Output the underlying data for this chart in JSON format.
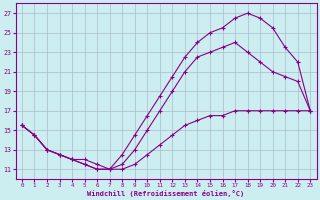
{
  "xlabel": "Windchill (Refroidissement éolien,°C)",
  "bg_color": "#cceef0",
  "grid_color": "#aabbcc",
  "line_color": "#880088",
  "xlim": [
    -0.5,
    23.5
  ],
  "ylim": [
    10,
    28
  ],
  "xticks": [
    0,
    1,
    2,
    3,
    4,
    5,
    6,
    7,
    8,
    9,
    10,
    11,
    12,
    13,
    14,
    15,
    16,
    17,
    18,
    19,
    20,
    21,
    22,
    23
  ],
  "yticks": [
    11,
    13,
    15,
    17,
    19,
    21,
    23,
    25,
    27
  ],
  "curve1_x": [
    0,
    1,
    2,
    3,
    4,
    5,
    6,
    7,
    8,
    9,
    10,
    11,
    12,
    13,
    14,
    15,
    16,
    17,
    18,
    19,
    20,
    21,
    22,
    23
  ],
  "curve1_y": [
    15.5,
    14.5,
    13.0,
    12.5,
    12.0,
    12.0,
    11.5,
    11.0,
    11.0,
    11.5,
    12.5,
    13.5,
    14.5,
    15.5,
    16.0,
    16.5,
    16.5,
    17.0,
    17.0,
    17.0,
    17.0,
    17.0,
    17.0,
    17.0
  ],
  "curve2_x": [
    0,
    1,
    2,
    3,
    4,
    5,
    6,
    7,
    8,
    9,
    10,
    11,
    12,
    13,
    14,
    15,
    16,
    17,
    18,
    19,
    20,
    21,
    22,
    23
  ],
  "curve2_y": [
    15.5,
    14.5,
    13.0,
    12.5,
    12.0,
    11.5,
    11.0,
    11.0,
    11.5,
    13.0,
    15.0,
    17.0,
    19.0,
    21.0,
    22.5,
    23.0,
    23.5,
    24.0,
    23.0,
    22.0,
    21.0,
    20.5,
    20.0,
    17.0
  ],
  "curve3_x": [
    0,
    1,
    2,
    3,
    4,
    5,
    6,
    7,
    8,
    9,
    10,
    11,
    12,
    13,
    14,
    15,
    16,
    17,
    18,
    19,
    20,
    21,
    22,
    23
  ],
  "curve3_y": [
    15.5,
    14.5,
    13.0,
    12.5,
    12.0,
    11.5,
    11.0,
    11.0,
    12.5,
    14.5,
    16.5,
    18.5,
    20.5,
    22.5,
    24.0,
    25.0,
    25.5,
    26.5,
    27.0,
    26.5,
    25.5,
    23.5,
    22.0,
    17.0
  ]
}
